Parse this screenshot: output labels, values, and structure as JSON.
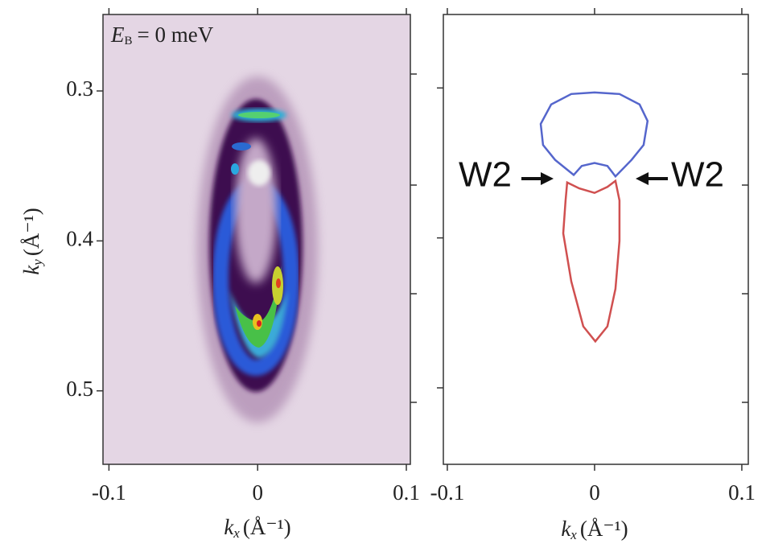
{
  "chart_data": [
    {
      "type": "heatmap",
      "annotation": {
        "symbol": "E",
        "subscript": "B",
        "text": "= 0 meV"
      },
      "xlabel": {
        "symbol": "k",
        "subscript": "x",
        "unit": "(Å⁻¹)"
      },
      "ylabel": {
        "symbol": "k",
        "subscript": "y",
        "unit": "(Å⁻¹)"
      },
      "xlim": [
        -0.104,
        0.1027
      ],
      "xticks": [
        -0.1,
        0,
        0.1
      ],
      "ylim": [
        0.249,
        0.549
      ],
      "y_inverted": true,
      "yticks": [
        0.3,
        0.4,
        0.5
      ],
      "background": "#e4d6e4"
    },
    {
      "type": "contour",
      "xlabel": {
        "symbol": "k",
        "subscript": "x",
        "unit": "(Å⁻¹)"
      },
      "xlim": [
        -0.1027,
        0.1044
      ],
      "xticks": [
        -0.1,
        0,
        0.1
      ],
      "ylim": [
        0.251,
        0.551
      ],
      "y_inverted": true,
      "yticks": [
        0.3,
        0.4,
        0.5
      ],
      "ytick_labels": false,
      "annotations": [
        "W2",
        "W2"
      ],
      "series": [
        {
          "color": "#5566cc",
          "x": [
            -0.0142,
            -0.0268,
            -0.035,
            -0.0366,
            -0.0295,
            -0.0158,
            0,
            0.0169,
            0.0306,
            0.036,
            0.0333,
            0.0251,
            0.0142,
            0.0087,
            0,
            -0.0087
          ],
          "values": [
            0.358,
            0.348,
            0.338,
            0.324,
            0.311,
            0.304,
            0.303,
            0.304,
            0.311,
            0.322,
            0.338,
            0.348,
            0.359,
            0.352,
            0.35,
            0.352
          ]
        },
        {
          "color": "#d05050",
          "x": [
            -0.0186,
            -0.0104,
            0,
            0.0087,
            0.0142,
            0.0169,
            0.0169,
            0.0142,
            0.0087,
            0.0005,
            -0.0077,
            -0.0158,
            -0.0213,
            -0.0197
          ],
          "values": [
            0.363,
            0.367,
            0.37,
            0.366,
            0.362,
            0.375,
            0.402,
            0.434,
            0.459,
            0.469,
            0.459,
            0.429,
            0.397,
            0.375
          ]
        }
      ]
    }
  ]
}
